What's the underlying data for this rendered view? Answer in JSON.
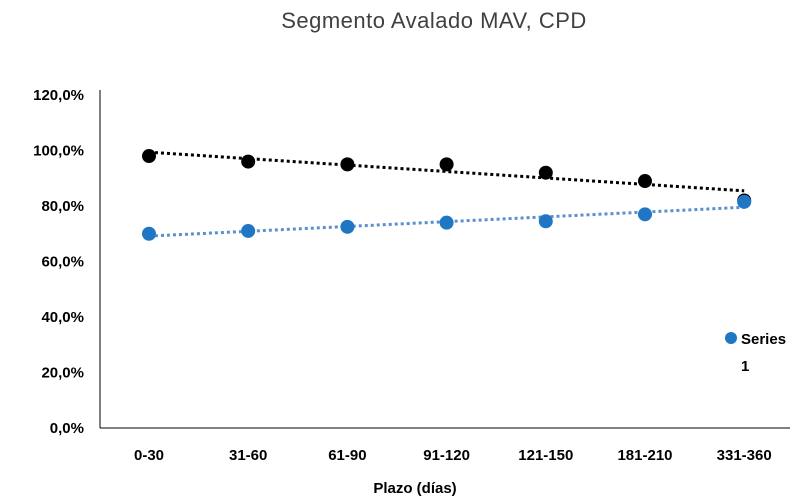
{
  "chart_data": {
    "type": "scatter",
    "title": "Segmento Avalado MAV, CPD",
    "xlabel": "Plazo (días)",
    "ylabel": "",
    "categories": [
      "0-30",
      "31-60",
      "61-90",
      "91-120",
      "121-150",
      "181-210",
      "331-360"
    ],
    "y_ticks": [
      "0,0%",
      "20,0%",
      "40,0%",
      "60,0%",
      "80,0%",
      "100,0%",
      "120,0%"
    ],
    "ylim": [
      0,
      120
    ],
    "grid": false,
    "legend_position": "right",
    "series": [
      {
        "legend_label": "",
        "color": "#000000",
        "values": [
          98,
          96,
          95,
          95,
          92,
          89,
          82
        ],
        "trendline": "linear",
        "trend_color": "#000000"
      },
      {
        "name": "Series 1",
        "legend_label": "Series 1",
        "color": "#1f77c4",
        "values": [
          70,
          71,
          72.5,
          74,
          74.5,
          77,
          81.5
        ],
        "trendline": "linear",
        "trend_color": "#5b8fd0"
      }
    ]
  }
}
